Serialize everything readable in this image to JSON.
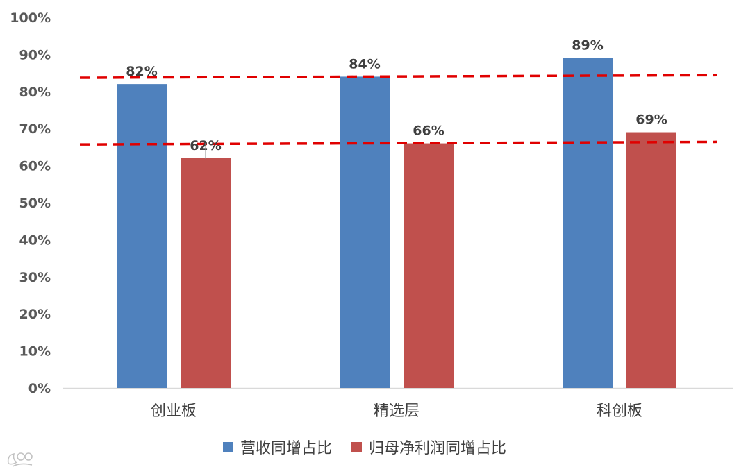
{
  "chart_data": {
    "type": "bar",
    "categories": [
      "创业板",
      "精选层",
      "科创板"
    ],
    "series": [
      {
        "name": "营收同增占比",
        "values": [
          82,
          84,
          89
        ],
        "color": "#4F81BD"
      },
      {
        "name": "归母净利润同增占比",
        "values": [
          62,
          66,
          69
        ],
        "color": "#C0504D"
      }
    ],
    "data_labels": [
      [
        "82%",
        "84%",
        "89%"
      ],
      [
        "62%",
        "66%",
        "69%"
      ]
    ],
    "y_ticks": [
      "0%",
      "10%",
      "20%",
      "30%",
      "40%",
      "50%",
      "60%",
      "70%",
      "80%",
      "90%",
      "100%"
    ],
    "ylim": [
      0,
      100
    ],
    "y_unit": "%",
    "grid": false,
    "legend_position": "bottom",
    "reference_lines": [
      {
        "style": "dashed",
        "color": "#E00000",
        "from": 83.7,
        "to": 84.4
      },
      {
        "style": "dashed",
        "color": "#E00000",
        "from": 65.7,
        "to": 66.4
      }
    ]
  },
  "watermark": {
    "logo_icon": "watermark-logo-icon"
  }
}
